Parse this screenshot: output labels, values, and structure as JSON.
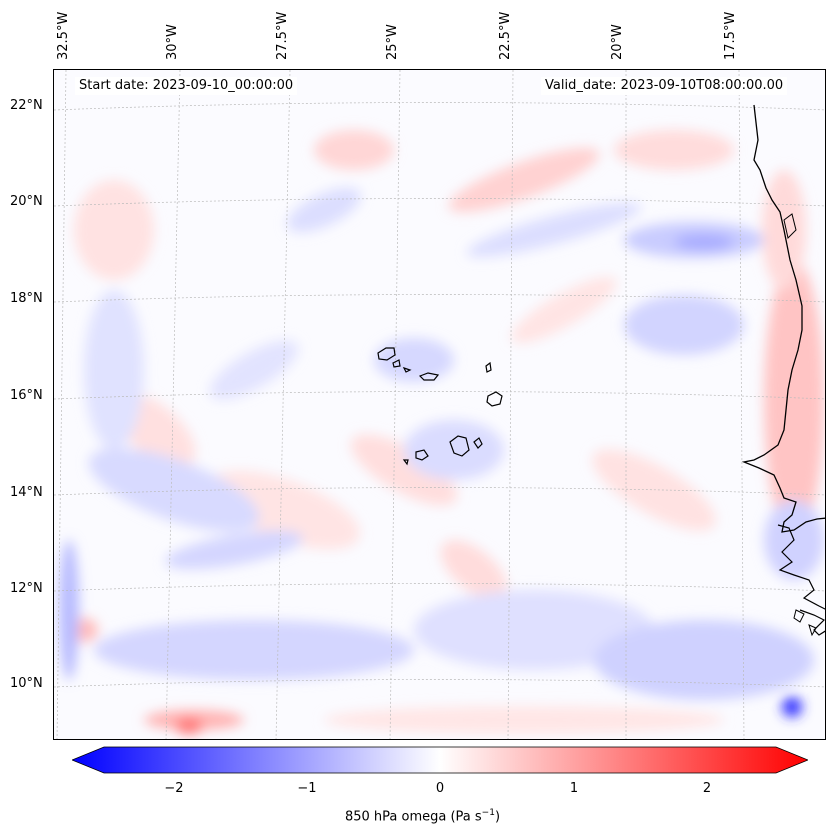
{
  "map": {
    "start_date": "Start date: 2023-09-10_00:00:00",
    "valid_date": "Valid_date: 2023-09-10T08:00:00.00",
    "lon_labels": [
      "32.5°W",
      "30°W",
      "27.5°W",
      "25°W",
      "22.5°W",
      "20°W",
      "17.5°W"
    ],
    "lat_labels": [
      "22°N",
      "20°N",
      "18°N",
      "16°N",
      "14°N",
      "12°N",
      "10°N"
    ],
    "field": "850 hPa omega",
    "colors": {
      "negative": "#0000ff",
      "zero": "#ffffff",
      "positive": "#ff0000",
      "coast": "#000000",
      "grid": "#bbbbbb"
    }
  },
  "colorbar": {
    "ticks": [
      "−2",
      "−1",
      "0",
      "1",
      "2"
    ],
    "title_prefix": "850 hPa omega (Pa s",
    "title_exp": "−1",
    "title_suffix": ")",
    "range": [
      -2.5,
      2.5
    ]
  }
}
